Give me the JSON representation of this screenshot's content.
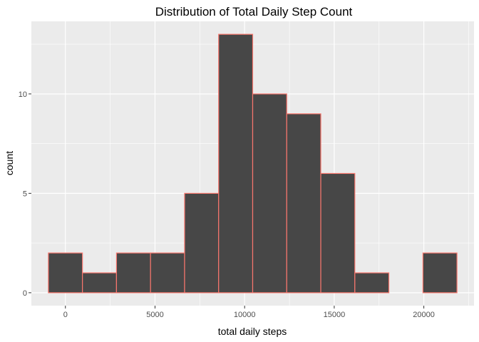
{
  "chart_data": {
    "type": "bar",
    "title": "Distribution of Total Daily Step Count",
    "xlabel": "total daily steps",
    "ylabel": "count",
    "bins": [
      {
        "x0": -950,
        "x1": 950,
        "count": 2
      },
      {
        "x0": 950,
        "x1": 2850,
        "count": 1
      },
      {
        "x0": 2850,
        "x1": 4750,
        "count": 2
      },
      {
        "x0": 4750,
        "x1": 6650,
        "count": 2
      },
      {
        "x0": 6650,
        "x1": 8550,
        "count": 5
      },
      {
        "x0": 8550,
        "x1": 10450,
        "count": 13
      },
      {
        "x0": 10450,
        "x1": 12350,
        "count": 10
      },
      {
        "x0": 12350,
        "x1": 14250,
        "count": 9
      },
      {
        "x0": 14250,
        "x1": 16150,
        "count": 6
      },
      {
        "x0": 16150,
        "x1": 18050,
        "count": 1
      },
      {
        "x0": 18050,
        "x1": 19950,
        "count": 0
      },
      {
        "x0": 19950,
        "x1": 21850,
        "count": 2
      }
    ],
    "xlim": [
      -1900,
      22800
    ],
    "ylim": [
      -0.65,
      13.65
    ],
    "x_ticks": [
      0,
      5000,
      10000,
      15000,
      20000
    ],
    "x_tick_labels": [
      "0",
      "5000",
      "10000",
      "15000",
      "20000"
    ],
    "x_minor_ticks": [
      -2500,
      2500,
      7500,
      12500,
      17500,
      22500
    ],
    "y_ticks": [
      0,
      5,
      10
    ],
    "y_tick_labels": [
      "0",
      "5",
      "10"
    ],
    "y_minor_ticks": [
      2.5,
      7.5,
      12.5
    ],
    "grid": true,
    "colors": {
      "panel_background": "#ebebeb",
      "grid": "#ffffff",
      "bar_fill": "#474747",
      "bar_outline": "#f8766d",
      "tick_mark": "#333333"
    }
  }
}
